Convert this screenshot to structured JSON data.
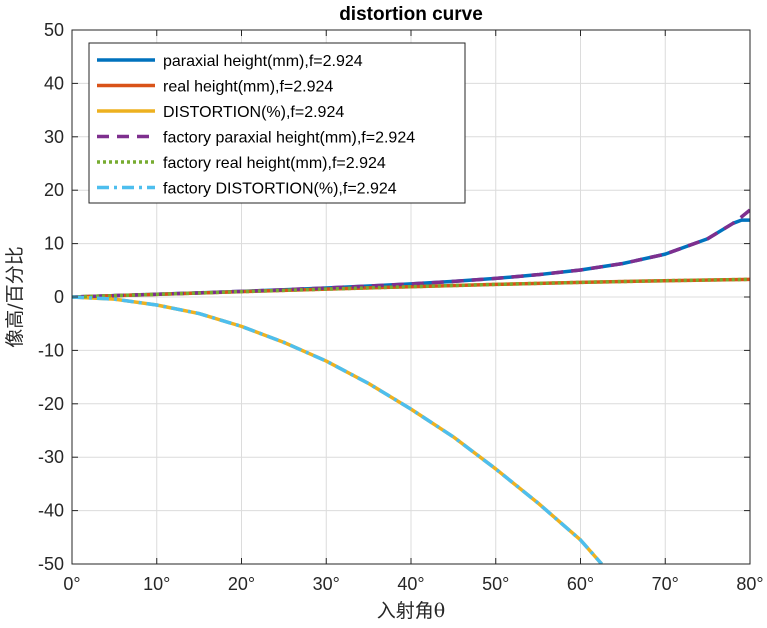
{
  "chart_data": {
    "type": "line",
    "title": "distortion curve",
    "xlabel": "入射角θ",
    "ylabel": "像高/百分比",
    "xlim": [
      0,
      80
    ],
    "ylim": [
      -50,
      50
    ],
    "xticks": [
      0,
      10,
      20,
      30,
      40,
      50,
      60,
      70,
      80
    ],
    "xtick_labels": [
      "0°",
      "10°",
      "20°",
      "30°",
      "40°",
      "50°",
      "60°",
      "70°",
      "80°"
    ],
    "yticks": [
      -50,
      -40,
      -30,
      -20,
      -10,
      0,
      10,
      20,
      30,
      40,
      50
    ],
    "ytick_labels": [
      "-50",
      "-40",
      "-30",
      "-20",
      "-10",
      "0",
      "10",
      "20",
      "30",
      "40",
      "50"
    ],
    "grid": true,
    "legend_position": "top-left",
    "series": [
      {
        "name": "paraxial height(mm),f=2.924",
        "color": "#0072BD",
        "style": "solid",
        "x": [
          0,
          5,
          10,
          15,
          20,
          25,
          30,
          35,
          40,
          45,
          50,
          55,
          60,
          65,
          70,
          75,
          78,
          79,
          80
        ],
        "y": [
          0,
          0.26,
          0.52,
          0.78,
          1.06,
          1.36,
          1.69,
          2.05,
          2.45,
          2.92,
          3.48,
          4.18,
          5.06,
          6.27,
          8.03,
          10.9,
          13.8,
          14.4,
          14.4
        ]
      },
      {
        "name": "real height(mm),f=2.924",
        "color": "#D95319",
        "style": "solid",
        "x": [
          0,
          10,
          20,
          30,
          40,
          50,
          60,
          70,
          80
        ],
        "y": [
          0,
          0.5,
          1.0,
          1.47,
          1.93,
          2.36,
          2.74,
          3.05,
          3.3
        ]
      },
      {
        "name": "DISTORTION(%),f=2.924",
        "color": "#EDB120",
        "style": "solid",
        "x": [
          0,
          5,
          10,
          15,
          20,
          25,
          30,
          35,
          40,
          45,
          50,
          55,
          60,
          62.5
        ],
        "y": [
          0,
          -0.4,
          -1.5,
          -3.1,
          -5.5,
          -8.5,
          -12,
          -16.2,
          -21,
          -26.2,
          -32.2,
          -38.6,
          -45.5,
          -50
        ]
      },
      {
        "name": "factory paraxial height(mm),f=2.924",
        "color": "#7E2F8E",
        "style": "dashed",
        "x": [
          0,
          5,
          10,
          15,
          20,
          25,
          30,
          35,
          40,
          45,
          50,
          55,
          60,
          65,
          70,
          75,
          78,
          79,
          80
        ],
        "y": [
          0,
          0.26,
          0.52,
          0.78,
          1.06,
          1.36,
          1.69,
          2.05,
          2.45,
          2.92,
          3.48,
          4.18,
          5.06,
          6.27,
          8.03,
          10.9,
          13.8,
          15.0,
          16.3
        ]
      },
      {
        "name": "factory real height(mm),f=2.924",
        "color": "#77AC30",
        "style": "dotted",
        "x": [
          0,
          10,
          20,
          30,
          40,
          50,
          60,
          70,
          80
        ],
        "y": [
          0,
          0.5,
          1.0,
          1.47,
          1.93,
          2.36,
          2.74,
          3.05,
          3.3
        ]
      },
      {
        "name": "factory DISTORTION(%),f=2.924",
        "color": "#4DBEEE",
        "style": "dashdot",
        "x": [
          0,
          5,
          10,
          15,
          20,
          25,
          30,
          35,
          40,
          45,
          50,
          55,
          60,
          62.5
        ],
        "y": [
          0,
          -0.4,
          -1.5,
          -3.1,
          -5.5,
          -8.5,
          -12,
          -16.2,
          -21,
          -26.2,
          -32.2,
          -38.6,
          -45.5,
          -50
        ]
      }
    ]
  }
}
